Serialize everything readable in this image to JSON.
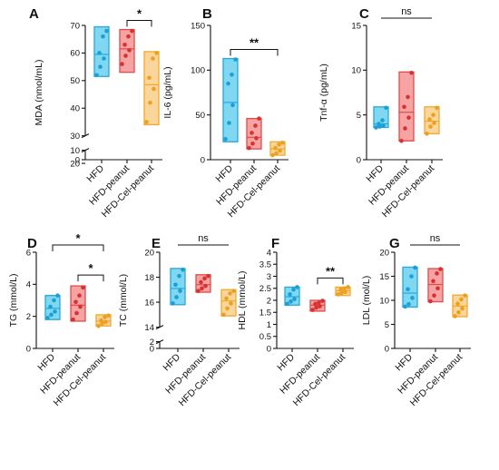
{
  "categories": [
    "HFD",
    "HFD-peanut",
    "HFD-Cel-peanut"
  ],
  "colors": {
    "HFD": {
      "fill": "#7fd7f2",
      "stroke": "#27a8d8",
      "dot": "#1a9fd6"
    },
    "HFD-peanut": {
      "fill": "#f5a3a3",
      "stroke": "#e04b4b",
      "dot": "#d93030"
    },
    "HFD-Cel-peanut": {
      "fill": "#fad69a",
      "stroke": "#f0a930",
      "dot": "#eda020"
    }
  },
  "chart_data": [
    {
      "panel": "A",
      "type": "box",
      "ylabel": "MDA (nmol/mL)",
      "ylim": [
        0,
        70
      ],
      "yticks": [
        "0",
        "10",
        "20",
        "30",
        "40",
        "50",
        "60",
        "70"
      ],
      "axis_break": [
        10,
        30
      ],
      "categories": [
        "HFD",
        "HFD-peanut",
        "HFD-Cel-peanut"
      ],
      "series": [
        {
          "min": 51.5,
          "max": 69.5,
          "median": 59.5,
          "points": [
            52,
            55,
            58,
            60,
            66,
            68
          ]
        },
        {
          "min": 53,
          "max": 68.5,
          "median": 61.5,
          "points": [
            56,
            59,
            61,
            63,
            66,
            68
          ]
        },
        {
          "min": 34,
          "max": 60.5,
          "median": 48.5,
          "points": [
            35,
            42,
            47,
            51,
            58,
            60
          ]
        }
      ],
      "annotations": [
        {
          "from": 1,
          "to": 2,
          "label": "*"
        }
      ]
    },
    {
      "panel": "B",
      "type": "box",
      "ylabel": "IL-6 (pg/mL)",
      "ylim": [
        0,
        150
      ],
      "yticks": [
        "0",
        "50",
        "100",
        "150"
      ],
      "categories": [
        "HFD",
        "HFD-peanut",
        "HFD-Cel-peanut"
      ],
      "series": [
        {
          "min": 20,
          "max": 113,
          "median": 64,
          "points": [
            23,
            41,
            61,
            85,
            95,
            112
          ]
        },
        {
          "min": 12,
          "max": 46,
          "median": 25,
          "points": [
            13,
            18,
            24,
            30,
            38,
            46
          ]
        },
        {
          "min": 5,
          "max": 20,
          "median": 12,
          "points": [
            5,
            7,
            10,
            13,
            17,
            19
          ]
        }
      ],
      "annotations": [
        {
          "from": 0,
          "to": 2,
          "label": "**"
        }
      ]
    },
    {
      "panel": "C",
      "type": "box",
      "ylabel": "Tnf-α (pg/mL)",
      "ylim": [
        0,
        15
      ],
      "yticks": [
        "0",
        "5",
        "10",
        "15"
      ],
      "categories": [
        "HFD",
        "HFD-peanut",
        "HFD-Cel-peanut"
      ],
      "series": [
        {
          "min": 3.6,
          "max": 5.9,
          "median": 4.0,
          "points": [
            3.6,
            3.7,
            3.8,
            4.0,
            4.4,
            5.8
          ]
        },
        {
          "min": 2.1,
          "max": 9.8,
          "median": 5.3,
          "points": [
            2.1,
            3.5,
            4.7,
            5.9,
            7.0,
            9.7
          ]
        },
        {
          "min": 2.9,
          "max": 5.9,
          "median": 4.3,
          "points": [
            2.9,
            3.7,
            4.1,
            4.5,
            5.0,
            5.8
          ]
        }
      ],
      "annotations": [
        {
          "from": 0,
          "to": 2,
          "label": "ns"
        }
      ]
    },
    {
      "panel": "D",
      "type": "box",
      "ylabel": "TG (mmol/L)",
      "ylim": [
        0,
        6
      ],
      "yticks": [
        "0",
        "2",
        "4",
        "6"
      ],
      "categories": [
        "HFD",
        "HFD-peanut",
        "HFD-Cel-peanut"
      ],
      "series": [
        {
          "min": 1.8,
          "max": 3.3,
          "median": 2.5,
          "points": [
            1.9,
            2.1,
            2.3,
            2.6,
            3.0,
            3.3
          ]
        },
        {
          "min": 1.7,
          "max": 3.9,
          "median": 2.7,
          "points": [
            1.8,
            2.2,
            2.6,
            2.9,
            3.3,
            3.8
          ]
        },
        {
          "min": 1.4,
          "max": 2.1,
          "median": 1.7,
          "points": [
            1.4,
            1.55,
            1.65,
            1.75,
            1.95,
            2.05
          ]
        }
      ],
      "annotations": [
        {
          "from": 0,
          "to": 2,
          "label": "*"
        },
        {
          "from": 1,
          "to": 2,
          "label": "*"
        }
      ]
    },
    {
      "panel": "E",
      "type": "box",
      "ylabel": "TC (mmol/L)",
      "ylim": [
        0,
        20
      ],
      "yticks": [
        "0",
        "2",
        "14",
        "16",
        "18",
        "20"
      ],
      "axis_break": [
        2,
        14
      ],
      "categories": [
        "HFD",
        "HFD-peanut",
        "HFD-Cel-peanut"
      ],
      "series": [
        {
          "min": 15.8,
          "max": 18.7,
          "median": 17.1,
          "points": [
            15.9,
            16.4,
            16.9,
            17.4,
            18.1,
            18.6
          ]
        },
        {
          "min": 16.8,
          "max": 18.2,
          "median": 17.4,
          "points": [
            16.9,
            17.1,
            17.3,
            17.6,
            17.9,
            18.1
          ]
        },
        {
          "min": 14.9,
          "max": 17.0,
          "median": 16.1,
          "points": [
            15.0,
            15.5,
            15.9,
            16.3,
            16.7,
            16.9
          ]
        }
      ],
      "annotations": [
        {
          "from": 0,
          "to": 2,
          "label": "ns"
        }
      ]
    },
    {
      "panel": "F",
      "type": "box",
      "ylabel": "HDL (mmol/L)",
      "ylim": [
        0,
        4
      ],
      "yticks": [
        "0",
        "0.5",
        "1",
        "1.5",
        "2",
        "2.5",
        "3",
        "3.5",
        "4"
      ],
      "categories": [
        "HFD",
        "HFD-peanut",
        "HFD-Cel-peanut"
      ],
      "series": [
        {
          "min": 1.8,
          "max": 2.55,
          "median": 2.15,
          "points": [
            1.85,
            1.95,
            2.05,
            2.25,
            2.45,
            2.55
          ]
        },
        {
          "min": 1.55,
          "max": 2.0,
          "median": 1.8,
          "points": [
            1.6,
            1.7,
            1.75,
            1.85,
            1.9,
            1.98
          ]
        },
        {
          "min": 2.2,
          "max": 2.55,
          "median": 2.4,
          "points": [
            2.25,
            2.3,
            2.35,
            2.45,
            2.5,
            2.55
          ]
        }
      ],
      "annotations": [
        {
          "from": 1,
          "to": 2,
          "label": "**"
        }
      ]
    },
    {
      "panel": "G",
      "type": "box",
      "ylabel": "LDL (mol/L)",
      "ylim": [
        0,
        20
      ],
      "yticks": [
        "0",
        "5",
        "10",
        "15",
        "20"
      ],
      "categories": [
        "HFD",
        "HFD-peanut",
        "HFD-Cel-peanut"
      ],
      "series": [
        {
          "min": 8.6,
          "max": 16.9,
          "median": 11.5,
          "points": [
            8.7,
            9.2,
            10.5,
            12.3,
            15.0,
            16.8
          ]
        },
        {
          "min": 9.7,
          "max": 16.6,
          "median": 13.3,
          "points": [
            9.8,
            11.0,
            12.5,
            14.0,
            15.6,
            16.5
          ]
        },
        {
          "min": 6.6,
          "max": 11.1,
          "median": 8.8,
          "points": [
            6.7,
            7.5,
            8.3,
            9.3,
            10.2,
            11.0
          ]
        }
      ],
      "annotations": [
        {
          "from": 0,
          "to": 2,
          "label": "ns"
        }
      ]
    }
  ]
}
